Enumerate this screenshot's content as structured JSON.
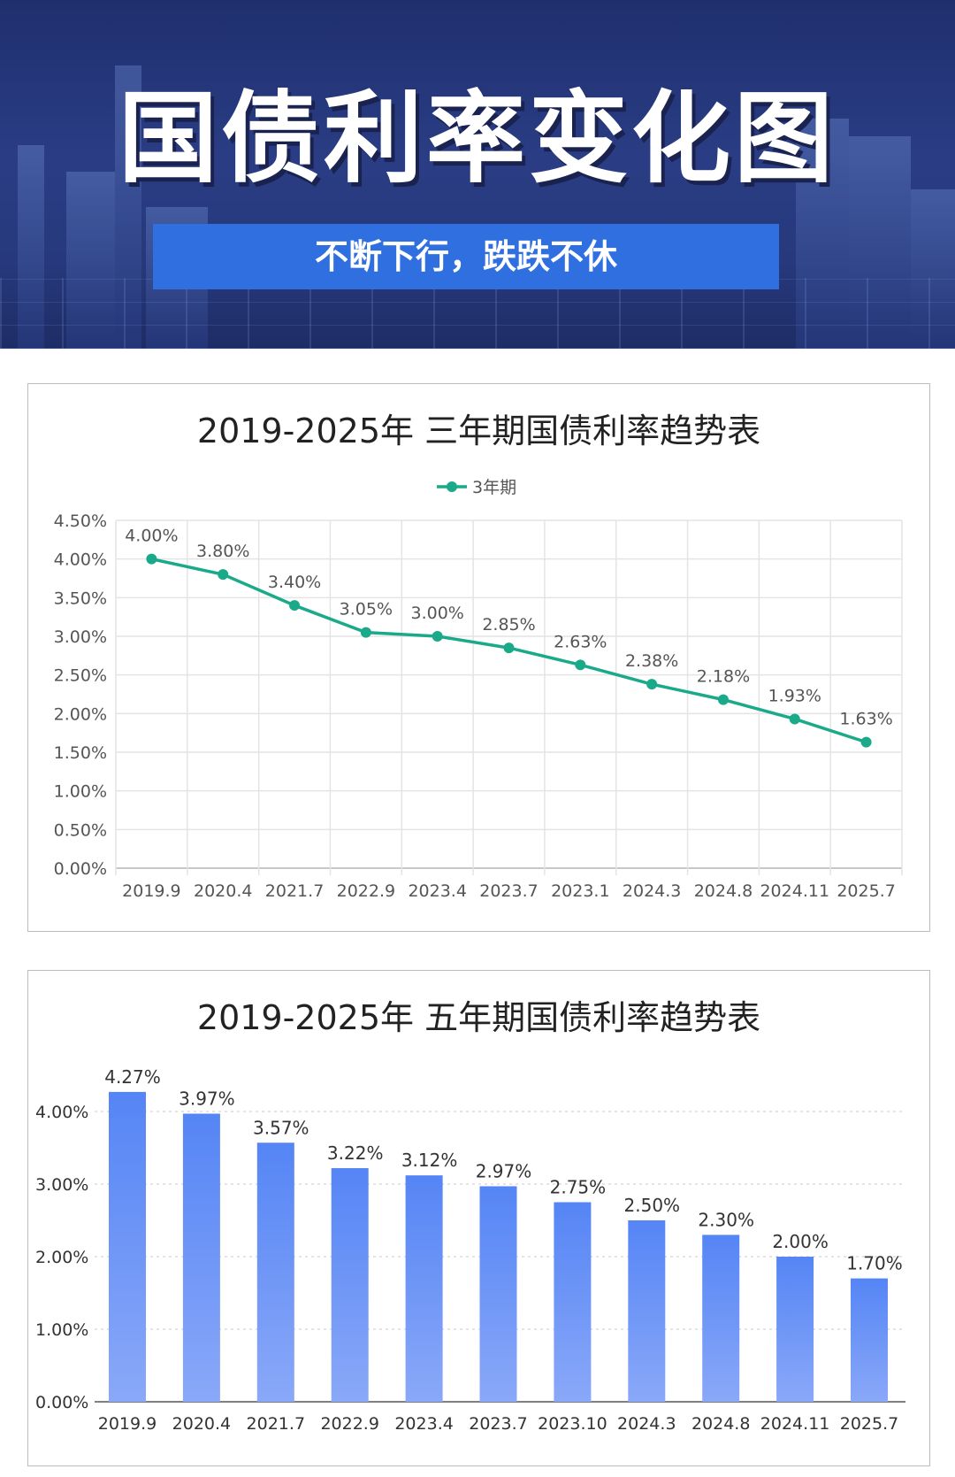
{
  "header": {
    "title": "国债利率变化图",
    "subtitle": "不断下行，跌跌不休"
  },
  "chart_data": [
    {
      "type": "line",
      "title": "2019-2025年 三年期国债利率趋势表",
      "categories": [
        "2019.9",
        "2020.4",
        "2021.7",
        "2022.9",
        "2023.4",
        "2023.7",
        "2023.1",
        "2024.3",
        "2024.8",
        "2024.11",
        "2025.7"
      ],
      "series": [
        {
          "name": "3年期",
          "values": [
            4.0,
            3.8,
            3.4,
            3.05,
            3.0,
            2.85,
            2.63,
            2.38,
            2.18,
            1.93,
            1.63
          ],
          "labels": [
            "4.00%",
            "3.80%",
            "3.40%",
            "3.05%",
            "3.00%",
            "2.85%",
            "2.63%",
            "2.38%",
            "2.18%",
            "1.93%",
            "1.63%"
          ]
        }
      ],
      "yticks": [
        "0.00%",
        "0.50%",
        "1.00%",
        "1.50%",
        "2.00%",
        "2.50%",
        "3.00%",
        "3.50%",
        "4.00%",
        "4.50%"
      ],
      "ylim": [
        0,
        4.5
      ],
      "grid": true,
      "legend": "top-center",
      "color": "#1aaa8a"
    },
    {
      "type": "bar",
      "title": "2019-2025年 五年期国债利率趋势表",
      "categories": [
        "2019.9",
        "2020.4",
        "2021.7",
        "2022.9",
        "2023.4",
        "2023.7",
        "2023.10",
        "2024.3",
        "2024.8",
        "2024.11",
        "2025.7"
      ],
      "values": [
        4.27,
        3.97,
        3.57,
        3.22,
        3.12,
        2.97,
        2.75,
        2.5,
        2.3,
        2.0,
        1.7
      ],
      "labels": [
        "4.27%",
        "3.97%",
        "3.57%",
        "3.22%",
        "3.12%",
        "2.97%",
        "2.75%",
        "2.50%",
        "2.30%",
        "2.00%",
        "1.70%"
      ],
      "yticks": [
        "0.00%",
        "1.00%",
        "2.00%",
        "3.00%",
        "4.00%"
      ],
      "ylim": [
        0,
        4.35
      ],
      "grid": true,
      "color_top": "#5585f5",
      "color_bottom": "#8aa8f8"
    }
  ]
}
